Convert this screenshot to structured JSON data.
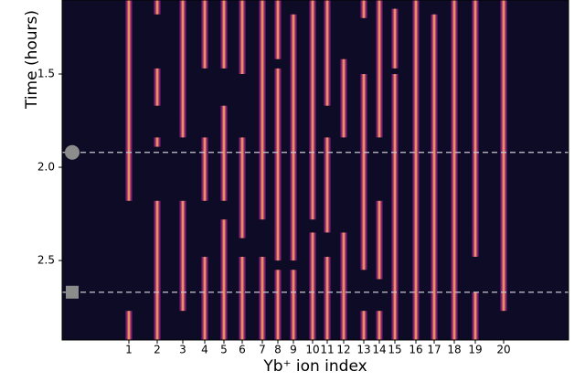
{
  "chart_data": {
    "type": "heatmap-stripes",
    "ylabel": "Time (hours)",
    "xlabel": "Yb⁺ ion index",
    "ylim": [
      1.103,
      2.926
    ],
    "yticks": [
      1.5,
      {
        "value": 2,
        "label": "2.0"
      },
      2.5
    ],
    "xlim": [
      0,
      554
    ],
    "background": "#0e0b26",
    "series": [
      {
        "name": "1",
        "x": 73,
        "dark": [
          [
            2.18,
            2.77
          ]
        ]
      },
      {
        "name": "2",
        "x": 104,
        "dark": [
          [
            1.18,
            1.47
          ],
          [
            1.67,
            1.84
          ],
          [
            1.89,
            2.18
          ]
        ]
      },
      {
        "name": "3",
        "x": 132,
        "dark": [
          [
            1.84,
            2.18
          ],
          [
            2.77,
            2.926
          ]
        ]
      },
      {
        "name": "4",
        "x": 156,
        "dark": [
          [
            1.47,
            1.84
          ],
          [
            2.18,
            2.48
          ]
        ]
      },
      {
        "name": "5",
        "x": 177,
        "dark": [
          [
            1.47,
            1.67
          ],
          [
            2.18,
            2.28
          ]
        ]
      },
      {
        "name": "6",
        "x": 197,
        "dark": [
          [
            1.5,
            1.84
          ],
          [
            2.38,
            2.48
          ]
        ]
      },
      {
        "name": "7",
        "x": 219,
        "dark": [
          [
            2.28,
            2.48
          ]
        ]
      },
      {
        "name": "8",
        "x": 236,
        "dark": [
          [
            1.42,
            1.47
          ],
          [
            2.5,
            2.55
          ]
        ]
      },
      {
        "name": "9",
        "x": 253,
        "dark": [
          [
            1.103,
            1.18
          ],
          [
            2.5,
            2.55
          ]
        ]
      },
      {
        "name": "10",
        "x": 274,
        "dark": [
          [
            2.28,
            2.35
          ]
        ]
      },
      {
        "name": "11",
        "x": 290,
        "dark": [
          [
            1.67,
            1.84
          ],
          [
            2.35,
            2.48
          ]
        ]
      },
      {
        "name": "12",
        "x": 308,
        "dark": [
          [
            1.103,
            1.42
          ],
          [
            1.84,
            2.35
          ]
        ]
      },
      {
        "name": "13",
        "x": 330,
        "dark": [
          [
            1.2,
            1.5
          ],
          [
            2.55,
            2.77
          ]
        ]
      },
      {
        "name": "14",
        "x": 347,
        "dark": [
          [
            1.84,
            2.18
          ],
          [
            2.6,
            2.77
          ]
        ]
      },
      {
        "name": "15",
        "x": 364,
        "dark": [
          [
            1.103,
            1.15
          ],
          [
            1.47,
            1.5
          ]
        ]
      },
      {
        "name": "16",
        "x": 387,
        "dark": []
      },
      {
        "name": "17",
        "x": 407,
        "dark": [
          [
            1.103,
            1.18
          ]
        ]
      },
      {
        "name": "18",
        "x": 429,
        "dark": []
      },
      {
        "name": "19",
        "x": 452,
        "dark": [
          [
            2.48,
            2.67
          ]
        ]
      },
      {
        "name": "20",
        "x": 483,
        "dark": [
          [
            2.77,
            2.926
          ]
        ]
      }
    ],
    "markers": [
      {
        "y": 1.92,
        "shape": "circle",
        "color": "#8c8c8c"
      },
      {
        "y": 2.67,
        "shape": "square",
        "color": "#8c8c8c"
      }
    ]
  }
}
